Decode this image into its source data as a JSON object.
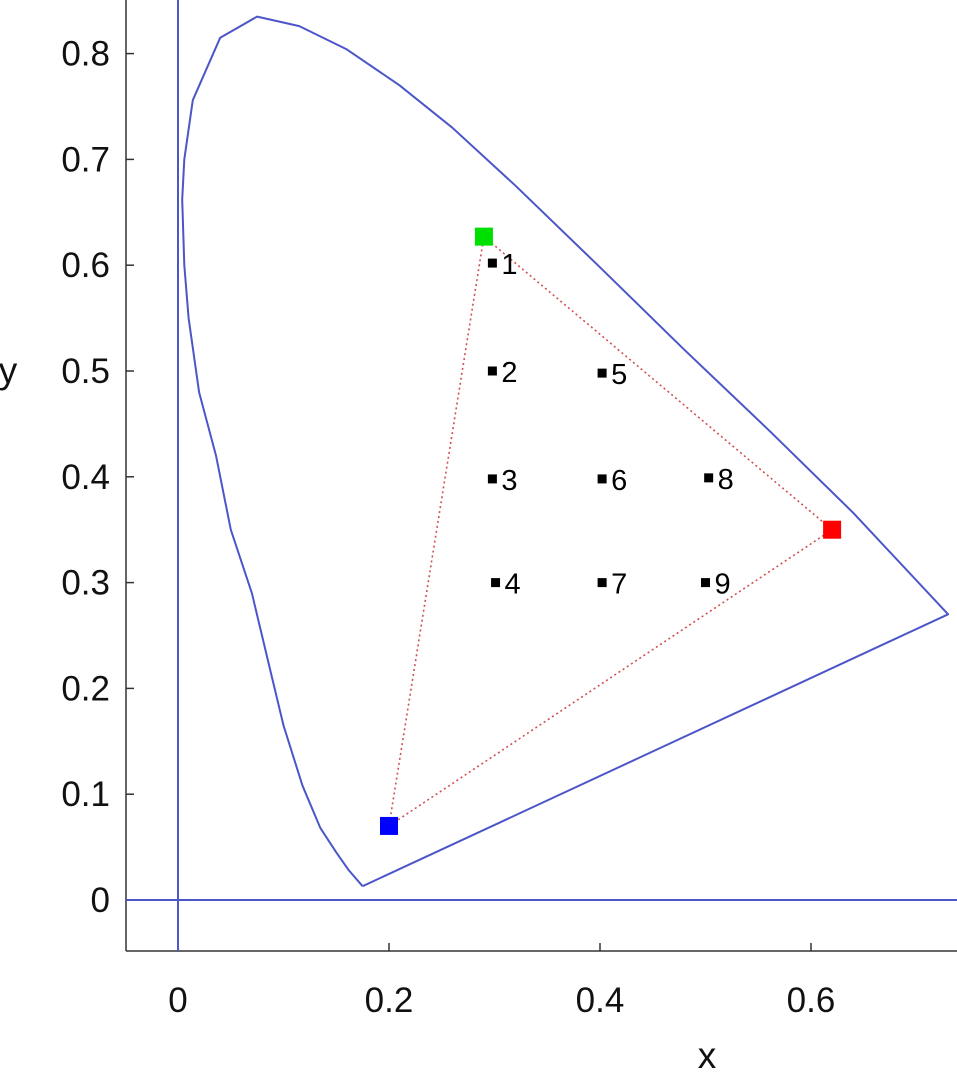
{
  "chart_data": {
    "type": "scatter",
    "xlabel": "x",
    "ylabel": "y",
    "xlim": [
      -0.05,
      0.735
    ],
    "ylim": [
      -0.05,
      0.85
    ],
    "xticks": [
      0,
      0.2,
      0.4,
      0.6
    ],
    "xtick_labels": [
      "0",
      "0.2",
      "0.4",
      "0.6"
    ],
    "yticks": [
      0,
      0.1,
      0.2,
      0.3,
      0.4,
      0.5,
      0.6,
      0.7,
      0.8
    ],
    "ytick_labels": [
      "0",
      "0.1",
      "0.2",
      "0.3",
      "0.4",
      "0.5",
      "0.6",
      "0.7",
      "0.8"
    ],
    "grid": false,
    "reference_lines": {
      "x": 0,
      "y": 0,
      "color": "#4b56c8"
    },
    "spectral_locus": {
      "color": "#4b56c8",
      "points": [
        [
          0.175,
          0.013
        ],
        [
          0.162,
          0.028
        ],
        [
          0.15,
          0.045
        ],
        [
          0.135,
          0.068
        ],
        [
          0.118,
          0.108
        ],
        [
          0.1,
          0.165
        ],
        [
          0.088,
          0.215
        ],
        [
          0.07,
          0.29
        ],
        [
          0.05,
          0.35
        ],
        [
          0.036,
          0.42
        ],
        [
          0.02,
          0.48
        ],
        [
          0.01,
          0.55
        ],
        [
          0.006,
          0.6
        ],
        [
          0.004,
          0.662
        ],
        [
          0.006,
          0.7
        ],
        [
          0.014,
          0.756
        ],
        [
          0.04,
          0.815
        ],
        [
          0.075,
          0.835
        ],
        [
          0.115,
          0.826
        ],
        [
          0.16,
          0.804
        ],
        [
          0.21,
          0.77
        ],
        [
          0.26,
          0.73
        ],
        [
          0.32,
          0.675
        ],
        [
          0.4,
          0.598
        ],
        [
          0.48,
          0.52
        ],
        [
          0.56,
          0.444
        ],
        [
          0.64,
          0.366
        ],
        [
          0.73,
          0.27
        ],
        [
          0.175,
          0.013
        ]
      ]
    },
    "primaries": [
      {
        "color": "#00e000",
        "x": 0.29,
        "y": 0.627
      },
      {
        "color": "#ff0000",
        "x": 0.62,
        "y": 0.35
      },
      {
        "color": "#0000ff",
        "x": 0.2,
        "y": 0.07
      }
    ],
    "gamut_triangle": {
      "color": "#d05050"
    },
    "points": [
      {
        "label": "1",
        "x": 0.298,
        "y": 0.602
      },
      {
        "label": "2",
        "x": 0.298,
        "y": 0.5
      },
      {
        "label": "3",
        "x": 0.298,
        "y": 0.398
      },
      {
        "label": "4",
        "x": 0.301,
        "y": 0.3
      },
      {
        "label": "5",
        "x": 0.402,
        "y": 0.498
      },
      {
        "label": "6",
        "x": 0.402,
        "y": 0.398
      },
      {
        "label": "7",
        "x": 0.402,
        "y": 0.3
      },
      {
        "label": "8",
        "x": 0.503,
        "y": 0.399
      },
      {
        "label": "9",
        "x": 0.5,
        "y": 0.3
      }
    ]
  }
}
